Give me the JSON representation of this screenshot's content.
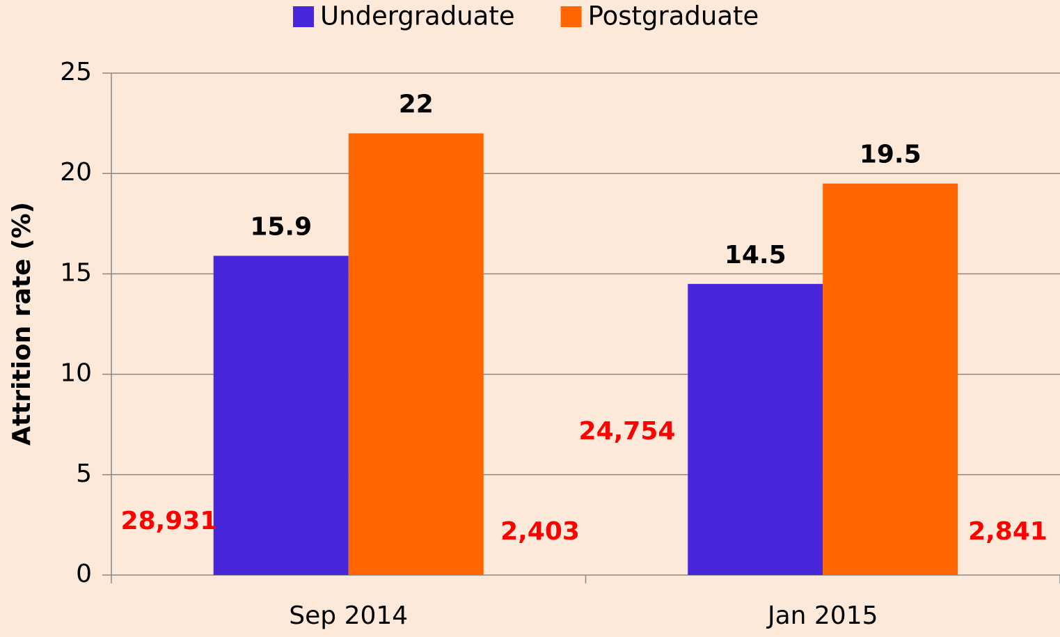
{
  "chart_data": {
    "type": "bar",
    "categories": [
      "Sep 2014",
      "Jan 2015"
    ],
    "series": [
      {
        "name": "Undergraduate",
        "color": "#4827db",
        "values": [
          15.9,
          14.5
        ]
      },
      {
        "name": "Postgraduate",
        "color": "#ff6600",
        "values": [
          22,
          19.5
        ]
      }
    ],
    "ylabel": "Attrition rate (%)",
    "ylim": [
      0,
      25
    ],
    "yticks": [
      0,
      5,
      10,
      15,
      20,
      25
    ],
    "grid": true,
    "legend": "top",
    "annotations": [
      "28,931",
      "2,403",
      "24,754",
      "2,841"
    ]
  }
}
